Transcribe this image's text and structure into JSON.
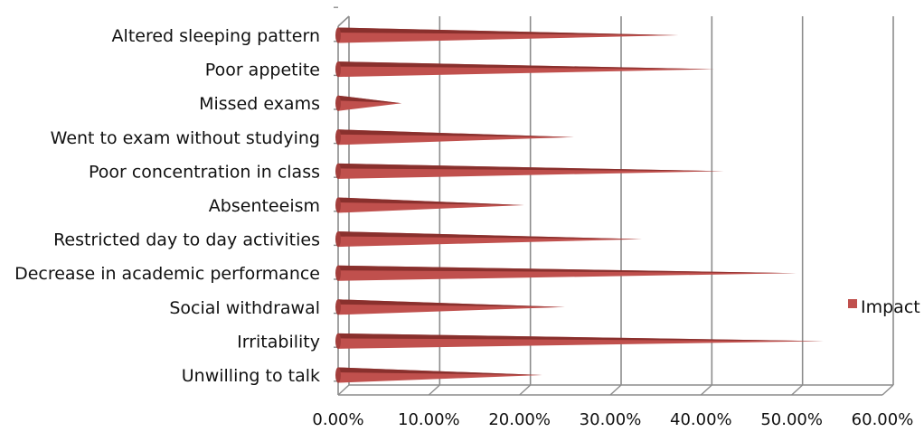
{
  "chart_data": {
    "type": "bar",
    "orientation": "horizontal",
    "style": "3d-cone",
    "categories": [
      "Altered sleeping pattern",
      "Poor appetite",
      "Missed exams",
      "Went to exam without studying",
      "Poor concentration in class",
      "Absenteeism",
      "Restricted day to day activities",
      "Decrease in academic performance",
      "Social withdrawal",
      "Irritability",
      "Unwilling to talk"
    ],
    "series": [
      {
        "name": "Impact",
        "color": "#c0504d",
        "values": [
          37.5,
          41.5,
          7,
          26,
          42.5,
          20.5,
          33.5,
          50.5,
          25,
          53.5,
          22.5
        ]
      }
    ],
    "xlim": [
      0,
      60
    ],
    "xticks": [
      "0.00%",
      "10.00%",
      "20.00%",
      "30.00%",
      "40.00%",
      "50.00%",
      "60.00%"
    ],
    "grid": true,
    "legend_position": "right"
  }
}
